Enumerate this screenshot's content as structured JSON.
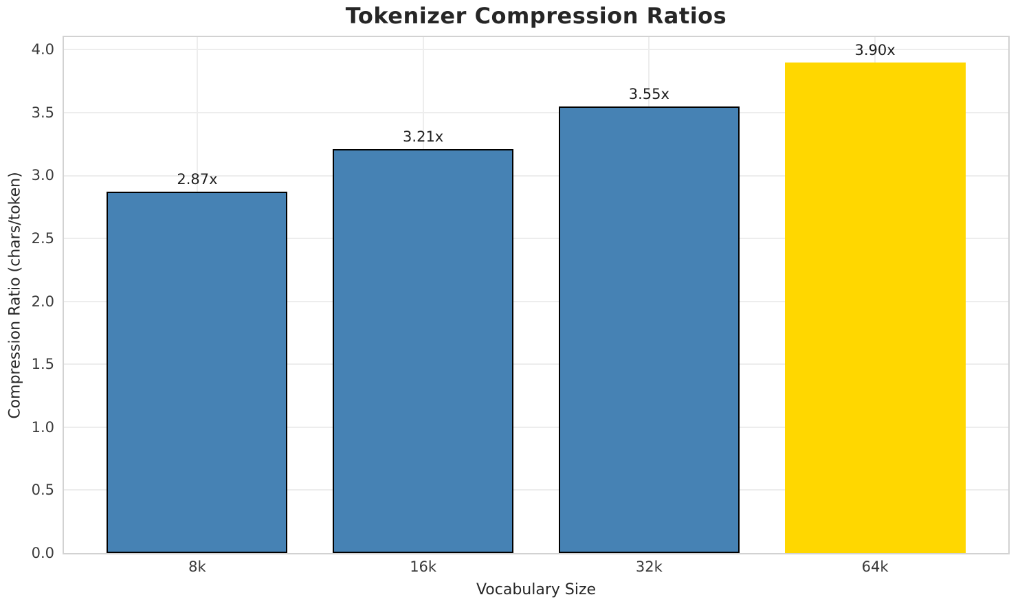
{
  "chart_data": {
    "type": "bar",
    "title": "Tokenizer Compression Ratios",
    "xlabel": "Vocabulary Size",
    "ylabel": "Compression Ratio (chars/token)",
    "categories": [
      "8k",
      "16k",
      "32k",
      "64k"
    ],
    "values": [
      2.87,
      3.21,
      3.55,
      3.9
    ],
    "bar_labels": [
      "2.87x",
      "3.21x",
      "3.55x",
      "3.90x"
    ],
    "bar_colors": [
      "#4682b4",
      "#4682b4",
      "#4682b4",
      "#ffd700"
    ],
    "bar_edge_colors": [
      "#000000",
      "#000000",
      "#000000",
      "none"
    ],
    "bar_width": 0.8,
    "yticks": [
      0.0,
      0.5,
      1.0,
      1.5,
      2.0,
      2.5,
      3.0,
      3.5,
      4.0
    ],
    "ytick_labels": [
      "0.0",
      "0.5",
      "1.0",
      "1.5",
      "2.0",
      "2.5",
      "3.0",
      "3.5",
      "4.0"
    ],
    "ylim": [
      0,
      4.1
    ],
    "xlim": [
      -0.59,
      3.59
    ],
    "grid": true,
    "legend_position": "none"
  },
  "colors": {
    "grid": "#ededed",
    "spine": "#d2d2d2",
    "title_text": "#262626",
    "tick_text": "#3a3a3a",
    "highlight_bar": "#ffd700",
    "default_bar": "#4682b4"
  }
}
